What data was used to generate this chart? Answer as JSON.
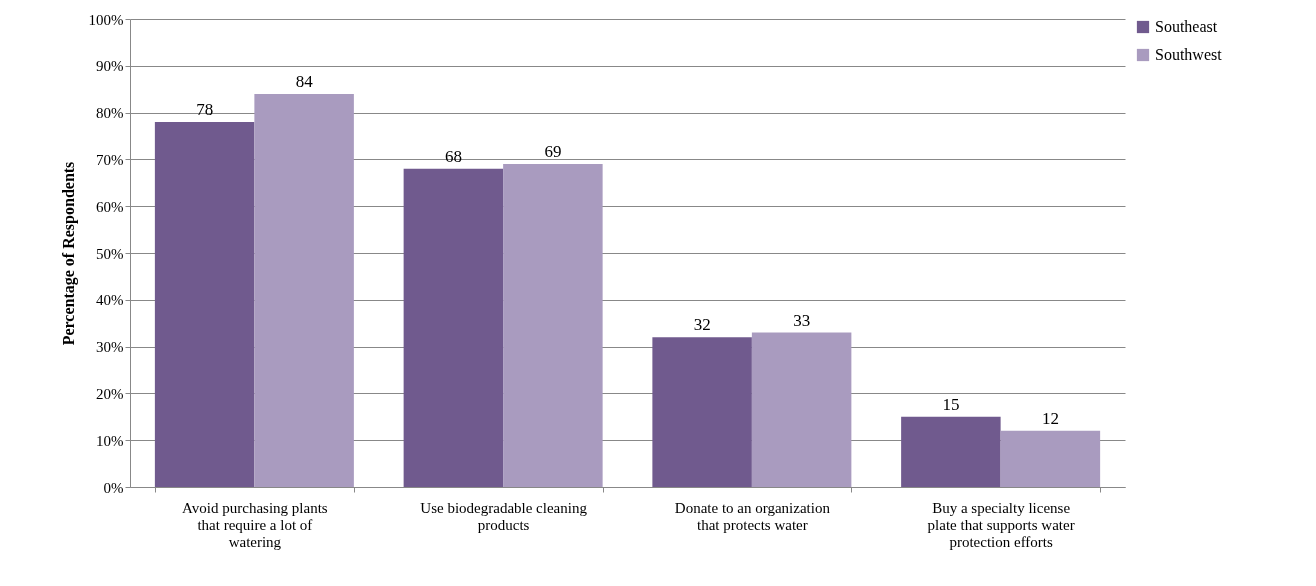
{
  "chart_data": {
    "type": "bar",
    "categories": [
      "Avoid purchasing plants that require a lot of watering",
      "Use biodegradable cleaning products",
      "Donate to an organization that protects water",
      "Buy a specialty license plate that supports water protection efforts"
    ],
    "series": [
      {
        "name": "Southeast",
        "color": "#705a8e",
        "values": [
          78,
          68,
          32,
          15
        ]
      },
      {
        "name": "Southwest",
        "color": "#a99bbf",
        "values": [
          84,
          69,
          33,
          12
        ]
      }
    ],
    "ylabel": "Percentage of Respondents",
    "ylim": [
      0,
      100
    ],
    "yticks": [
      {
        "value": 0,
        "label": "0%"
      },
      {
        "value": 10,
        "label": "10%"
      },
      {
        "value": 20,
        "label": "20%"
      },
      {
        "value": 30,
        "label": "30%"
      },
      {
        "value": 40,
        "label": "40%"
      },
      {
        "value": 50,
        "label": "50%"
      },
      {
        "value": 60,
        "label": "60%"
      },
      {
        "value": 70,
        "label": "70%"
      },
      {
        "value": 80,
        "label": "80%"
      },
      {
        "value": 90,
        "label": "90%"
      },
      {
        "value": 100,
        "label": "100%"
      }
    ],
    "grid": "y",
    "legend": "right",
    "data_labels": true
  }
}
